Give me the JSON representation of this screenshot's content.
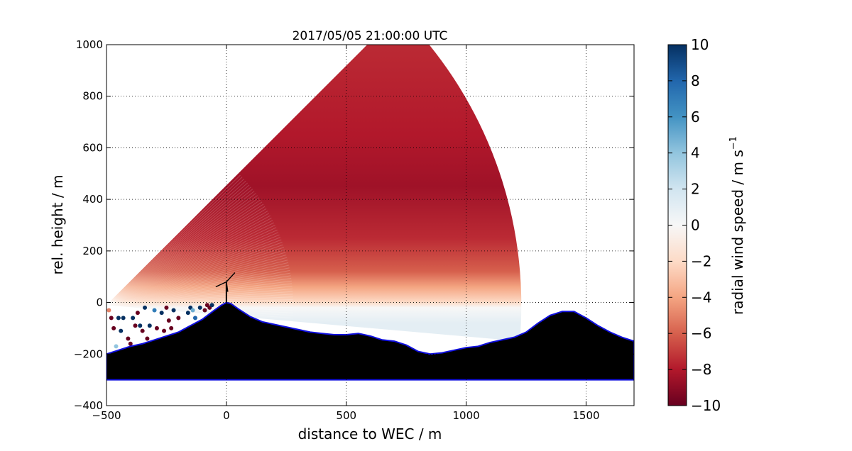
{
  "chart_data": {
    "type": "heatmap",
    "title": "2017/05/05 21:00:00 UTC",
    "xlabel": "distance to WEC / m",
    "ylabel": "rel. height / m",
    "xlim": [
      -500,
      1700
    ],
    "ylim": [
      -400,
      1000
    ],
    "x_ticks": [
      -500,
      0,
      500,
      1000,
      1500
    ],
    "y_ticks": [
      -400,
      -200,
      0,
      200,
      400,
      600,
      800,
      1000
    ],
    "x_tick_labels": [
      "−500",
      "0",
      "500",
      "1000",
      "1500"
    ],
    "y_tick_labels": [
      "−400",
      "−200",
      "0",
      "200",
      "400",
      "600",
      "800",
      "1000"
    ],
    "grid": true,
    "colormap": "RdBu",
    "colorbar": {
      "label": "radial wind speed / m s",
      "label_exponent": "−1",
      "range": [
        -10,
        10
      ],
      "ticks": [
        10,
        8,
        6,
        4,
        2,
        0,
        -2,
        -4,
        -6,
        -8,
        -10
      ],
      "tick_labels": [
        "10",
        "8",
        "6",
        "4",
        "2",
        "0",
        "−2",
        "−4",
        "−6",
        "−8",
        "−10"
      ]
    },
    "scan_sector": {
      "apex_x": -500,
      "apex_y": -10,
      "max_range_m": 1730,
      "radial_wind_speed_by_height": [
        {
          "height": -80,
          "value": 1
        },
        {
          "height": -20,
          "value": 0
        },
        {
          "height": 0,
          "value": -2
        },
        {
          "height": 60,
          "value": -4
        },
        {
          "height": 120,
          "value": -6
        },
        {
          "height": 250,
          "value": -7.5
        },
        {
          "height": 450,
          "value": -8.5
        },
        {
          "height": 650,
          "value": -8
        },
        {
          "height": 1000,
          "value": -7.5
        }
      ]
    },
    "terrain_profile": {
      "x": [
        -500,
        -450,
        -400,
        -350,
        -300,
        -250,
        -200,
        -150,
        -100,
        -50,
        -20,
        0,
        20,
        50,
        100,
        150,
        200,
        250,
        300,
        350,
        400,
        450,
        500,
        550,
        600,
        650,
        700,
        750,
        800,
        850,
        900,
        950,
        1000,
        1050,
        1100,
        1150,
        1200,
        1250,
        1300,
        1350,
        1400,
        1450,
        1500,
        1550,
        1600,
        1650,
        1700
      ],
      "height": [
        -200,
        -185,
        -170,
        -160,
        -145,
        -130,
        -115,
        -90,
        -65,
        -30,
        -10,
        0,
        -5,
        -25,
        -55,
        -75,
        -85,
        -95,
        -105,
        -115,
        -120,
        -125,
        -125,
        -120,
        -130,
        -145,
        -150,
        -165,
        -190,
        -200,
        -195,
        -185,
        -175,
        -170,
        -155,
        -145,
        -135,
        -115,
        -80,
        -50,
        -35,
        -35,
        -60,
        -90,
        -115,
        -135,
        -150
      ],
      "base": -300,
      "fill_color": "#000000",
      "outline_color": "#1010e0"
    },
    "scatter_points": [
      {
        "x": -490,
        "y": -30,
        "value": -5
      },
      {
        "x": -480,
        "y": -60,
        "value": -10
      },
      {
        "x": -470,
        "y": -100,
        "value": -10
      },
      {
        "x": -460,
        "y": -170,
        "value": 4
      },
      {
        "x": -450,
        "y": -60,
        "value": 10
      },
      {
        "x": -440,
        "y": -110,
        "value": 10
      },
      {
        "x": -430,
        "y": -60,
        "value": 10
      },
      {
        "x": -410,
        "y": -140,
        "value": -10
      },
      {
        "x": -400,
        "y": -160,
        "value": -10
      },
      {
        "x": -390,
        "y": -60,
        "value": 10
      },
      {
        "x": -380,
        "y": -90,
        "value": -10
      },
      {
        "x": -370,
        "y": -40,
        "value": -10
      },
      {
        "x": -360,
        "y": -90,
        "value": 10
      },
      {
        "x": -350,
        "y": -110,
        "value": -10
      },
      {
        "x": -340,
        "y": -20,
        "value": 10
      },
      {
        "x": -330,
        "y": -140,
        "value": -10
      },
      {
        "x": -320,
        "y": -90,
        "value": 10
      },
      {
        "x": -300,
        "y": -30,
        "value": 7
      },
      {
        "x": -290,
        "y": -100,
        "value": -10
      },
      {
        "x": -280,
        "y": -150,
        "value": 3
      },
      {
        "x": -270,
        "y": -40,
        "value": 10
      },
      {
        "x": -260,
        "y": -110,
        "value": -10
      },
      {
        "x": -250,
        "y": -20,
        "value": -10
      },
      {
        "x": -240,
        "y": -70,
        "value": -10
      },
      {
        "x": -230,
        "y": -100,
        "value": -10
      },
      {
        "x": -220,
        "y": -30,
        "value": 10
      },
      {
        "x": -200,
        "y": -60,
        "value": -10
      },
      {
        "x": -180,
        "y": -120,
        "value": 10
      },
      {
        "x": -160,
        "y": -40,
        "value": 10
      },
      {
        "x": -150,
        "y": -20,
        "value": 10
      },
      {
        "x": -140,
        "y": -30,
        "value": 5
      },
      {
        "x": -130,
        "y": -60,
        "value": 8
      },
      {
        "x": -110,
        "y": -20,
        "value": 10
      },
      {
        "x": -90,
        "y": -30,
        "value": -10
      },
      {
        "x": -80,
        "y": -10,
        "value": -10
      },
      {
        "x": -70,
        "y": -20,
        "value": -10
      },
      {
        "x": -60,
        "y": -10,
        "value": 10
      }
    ],
    "annotations": [
      {
        "type": "wind-turbine",
        "x": 0,
        "hub_height": 80
      }
    ]
  }
}
